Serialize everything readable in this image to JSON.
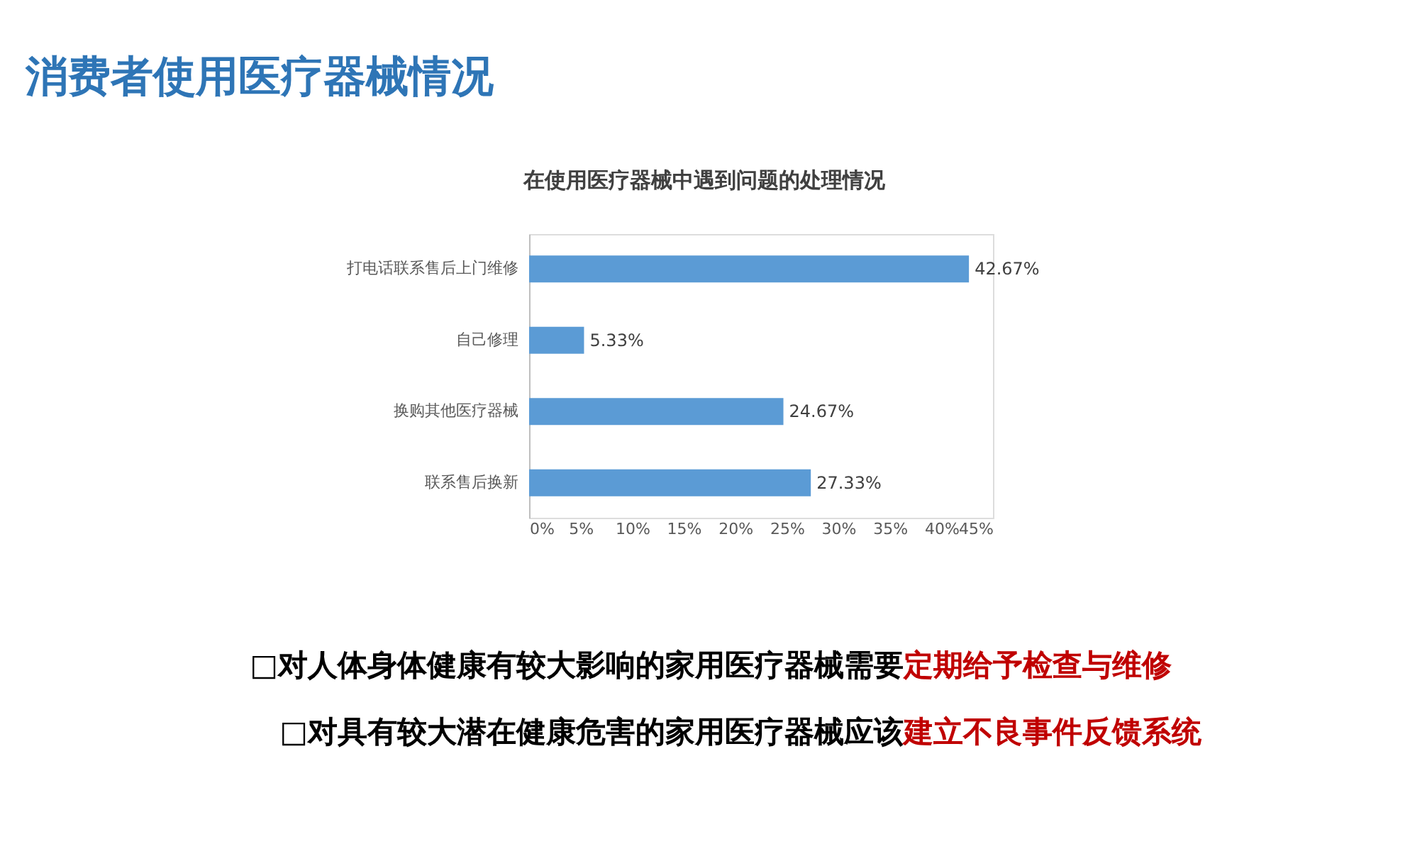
{
  "chart_data": {
    "type": "bar",
    "orientation": "horizontal",
    "title": "消费者使用医疗器械情况",
    "subtitle": "在使用医疗器械中遇到问题的处理情况",
    "categories": [
      "打电话联系售后上门维修",
      "自己修理",
      "换购其他医疗器械",
      "联系售后换新"
    ],
    "values": [
      42.67,
      5.33,
      24.67,
      27.33
    ],
    "color": "#5b9bd5",
    "value_labels": [
      "42.67%",
      "5.33%",
      "24.67%",
      "27.33%"
    ],
    "xlim": [
      0,
      45
    ],
    "xticks": [
      {
        "value": 0,
        "label": "0%"
      },
      {
        "value": 5,
        "label": "5%"
      },
      {
        "value": 10,
        "label": "10%"
      },
      {
        "value": 15,
        "label": "15%"
      },
      {
        "value": 20,
        "label": "20%"
      },
      {
        "value": 25,
        "label": "25%"
      },
      {
        "value": 30,
        "label": "30%"
      },
      {
        "value": 35,
        "label": "35%"
      },
      {
        "value": 40,
        "label": "40%"
      },
      {
        "value": 45,
        "label": "45%"
      }
    ],
    "grid": false,
    "annotations": [
      "□对人体身体健康有较大影响的家用医疗器械需要",
      "定期给予检查与维修",
      "□对具有较大潜在健康危害的家用医疗器械应该",
      "建立不良事件反馈系统"
    ]
  }
}
